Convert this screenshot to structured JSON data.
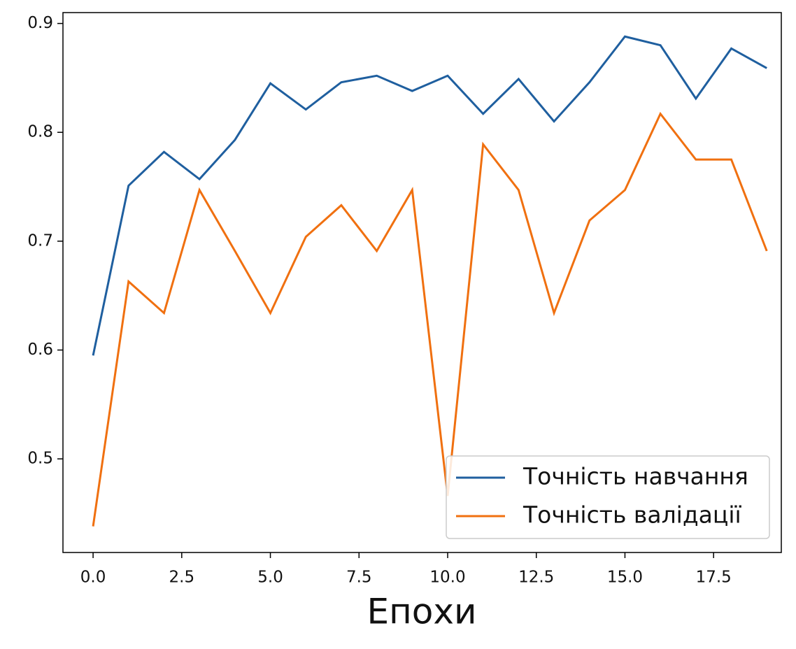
{
  "chart_data": {
    "type": "line",
    "x_label": "Епохи",
    "x": [
      0,
      1,
      2,
      3,
      4,
      5,
      6,
      7,
      8,
      9,
      10,
      11,
      12,
      13,
      14,
      15,
      16,
      17,
      18,
      19
    ],
    "series": [
      {
        "name": "Точність навчання",
        "color": "#1f5f9f",
        "values": [
          0.595,
          0.751,
          0.782,
          0.757,
          0.793,
          0.845,
          0.821,
          0.846,
          0.852,
          0.838,
          0.852,
          0.817,
          0.849,
          0.81,
          0.846,
          0.888,
          0.88,
          0.831,
          0.877,
          0.859
        ]
      },
      {
        "name": "Точність валідації",
        "color": "#f07010",
        "values": [
          0.438,
          0.663,
          0.634,
          0.747,
          0.691,
          0.634,
          0.704,
          0.733,
          0.691,
          0.747,
          0.466,
          0.789,
          0.747,
          0.634,
          0.719,
          0.747,
          0.817,
          0.775,
          0.775,
          0.691
        ]
      }
    ],
    "xlim": [
      -0.85,
      19.41
    ],
    "ylim": [
      0.414,
      0.91
    ],
    "xticks": [
      {
        "value": 0,
        "label": "0.0"
      },
      {
        "value": 2.5,
        "label": "2.5"
      },
      {
        "value": 5,
        "label": "5.0"
      },
      {
        "value": 7.5,
        "label": "7.5"
      },
      {
        "value": 10,
        "label": "10.0"
      },
      {
        "value": 12.5,
        "label": "12.5"
      },
      {
        "value": 15,
        "label": "15.0"
      },
      {
        "value": 17.5,
        "label": "17.5"
      }
    ],
    "yticks": [
      0.5,
      0.6,
      0.7,
      0.8,
      0.9
    ],
    "legend": "lower right"
  }
}
